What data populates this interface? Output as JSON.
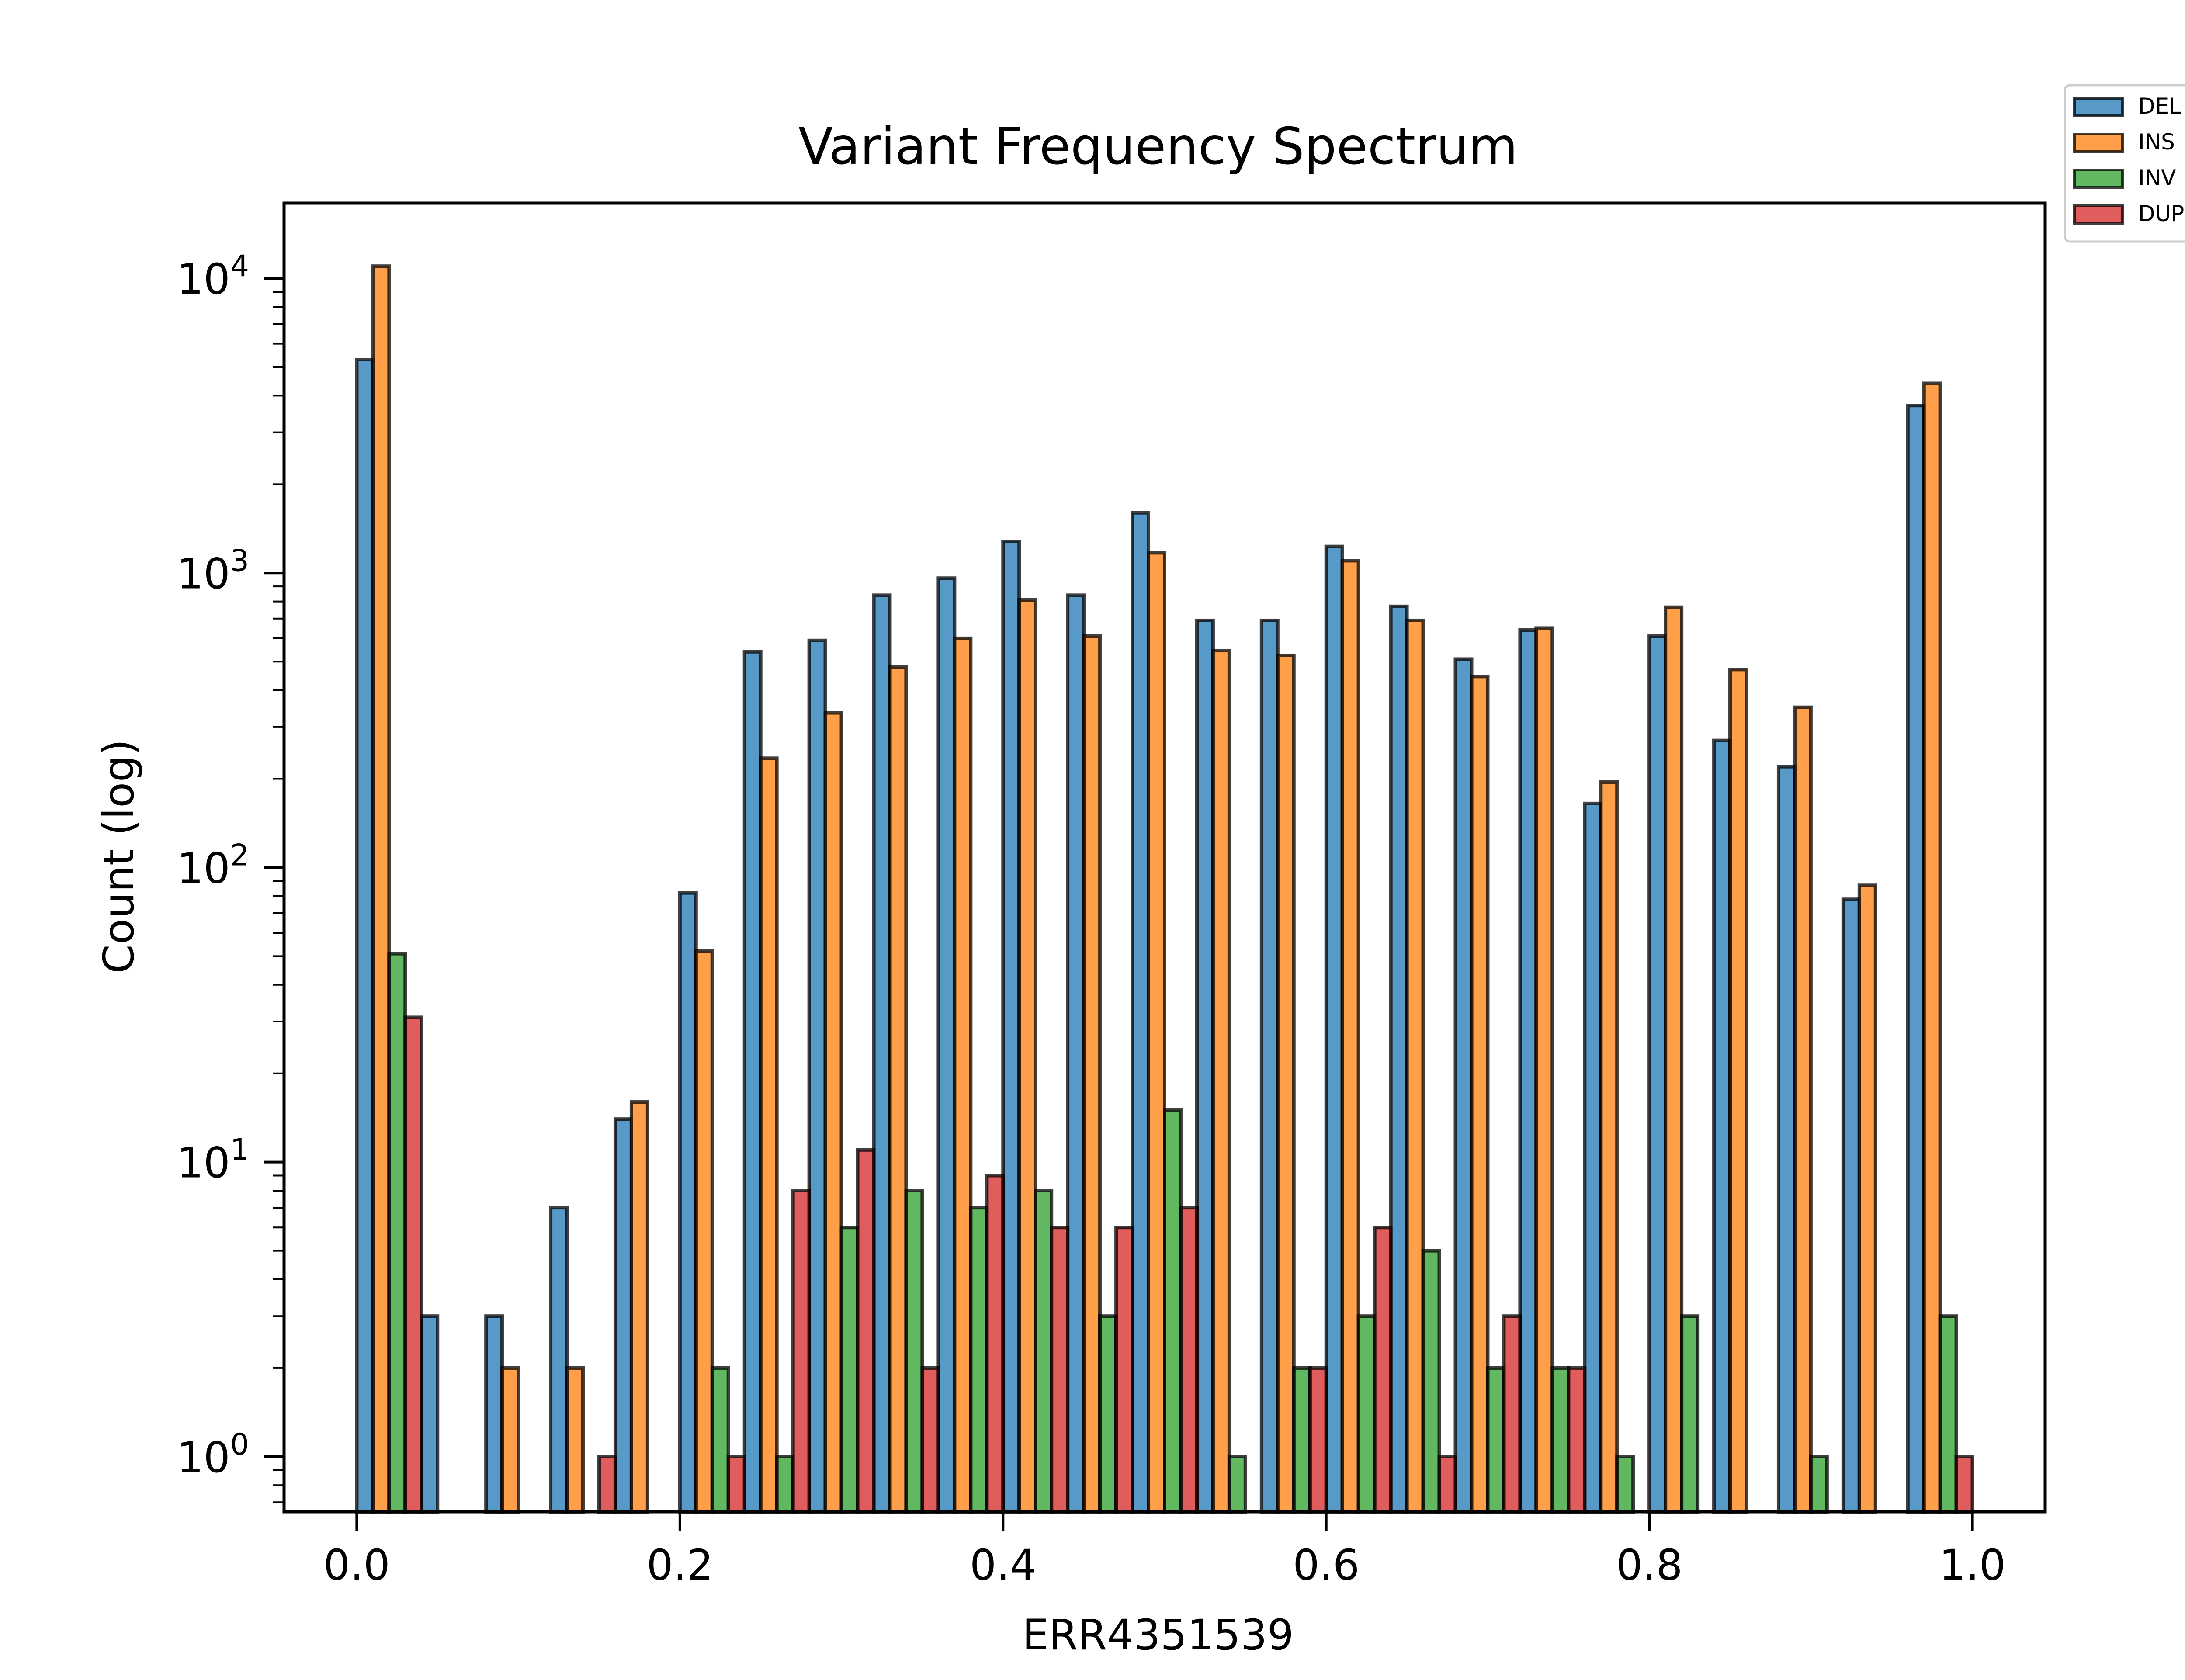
{
  "chart_data": {
    "type": "bar",
    "title": "Variant Frequency Spectrum",
    "xlabel": "ERR4351539",
    "ylabel": "Count (log)",
    "yscale": "log",
    "ylim": [
      0.65,
      18000
    ],
    "xlim": [
      -0.045,
      1.045
    ],
    "x_ticks": [
      {
        "value": 0.0,
        "label": "0.0"
      },
      {
        "value": 0.2,
        "label": "0.2"
      },
      {
        "value": 0.4,
        "label": "0.4"
      },
      {
        "value": 0.6,
        "label": "0.6"
      },
      {
        "value": 0.8,
        "label": "0.8"
      },
      {
        "value": 1.0,
        "label": "1.0"
      }
    ],
    "y_ticks": [
      {
        "value": 1,
        "base": "10",
        "exp": "0"
      },
      {
        "value": 10,
        "base": "10",
        "exp": "1"
      },
      {
        "value": 100,
        "base": "10",
        "exp": "2"
      },
      {
        "value": 1000,
        "base": "10",
        "exp": "3"
      },
      {
        "value": 10000,
        "base": "10",
        "exp": "4"
      }
    ],
    "grid": false,
    "legend_position": "outside top-right",
    "bins": [
      0.0,
      0.04,
      0.08,
      0.12,
      0.16,
      0.2,
      0.24,
      0.28,
      0.32,
      0.36,
      0.4,
      0.44,
      0.48,
      0.52,
      0.56,
      0.6,
      0.64,
      0.68,
      0.72,
      0.76,
      0.8,
      0.84,
      0.88,
      0.92,
      0.96
    ],
    "bin_width": 0.04,
    "series": [
      {
        "name": "DEL",
        "color": "#1f77b4",
        "values": [
          5300,
          3,
          3,
          7,
          14,
          82,
          540,
          590,
          840,
          960,
          1280,
          840,
          1600,
          690,
          690,
          1230,
          770,
          510,
          640,
          165,
          610,
          270,
          220,
          78,
          3700
        ]
      },
      {
        "name": "INS",
        "color": "#ff7f0e",
        "values": [
          11000,
          0,
          2,
          2,
          16,
          52,
          235,
          335,
          480,
          600,
          810,
          610,
          1170,
          545,
          525,
          1100,
          690,
          445,
          650,
          195,
          765,
          470,
          350,
          87,
          4400
        ]
      },
      {
        "name": "INV",
        "color": "#2ca02c",
        "values": [
          51,
          0,
          0,
          0,
          0,
          2,
          1,
          6,
          8,
          7,
          8,
          3,
          15,
          1,
          2,
          3,
          5,
          2,
          2,
          1,
          3,
          0,
          1,
          0,
          3
        ]
      },
      {
        "name": "DUP",
        "color": "#d62728",
        "values": [
          31,
          0,
          0,
          1,
          0,
          1,
          8,
          11,
          2,
          9,
          6,
          6,
          7,
          0,
          2,
          6,
          1,
          3,
          2,
          0,
          0,
          0,
          0,
          0,
          1
        ]
      }
    ]
  }
}
